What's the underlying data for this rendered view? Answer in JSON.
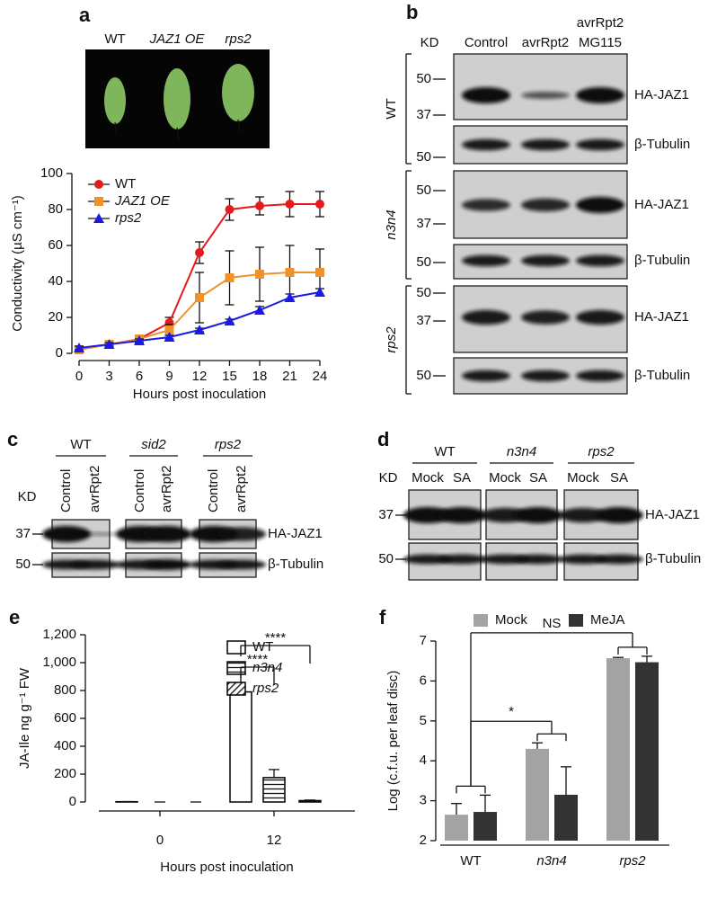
{
  "leaf_photo": {
    "labels": [
      "WT",
      "JAZ1 OE",
      "rps2"
    ]
  },
  "chart_data": [
    {
      "type": "line",
      "panel_label": "a",
      "ylabel": "Conductivity (µS cm⁻¹)",
      "xlabel": "Hours post inoculation",
      "x": [
        0,
        3,
        6,
        9,
        12,
        15,
        18,
        21,
        24
      ],
      "xlim": [
        0,
        24
      ],
      "xticks": [
        0,
        3,
        6,
        9,
        12,
        15,
        18,
        21,
        24
      ],
      "ylim": [
        0,
        100
      ],
      "yticks": [
        0,
        20,
        40,
        60,
        80,
        100
      ],
      "legend": "upper left",
      "series": [
        {
          "name": "WT",
          "color": "#e41a1c",
          "marker": "circle",
          "values": [
            2,
            5,
            8,
            17,
            56,
            80,
            82,
            83,
            83
          ],
          "errors": [
            1,
            1,
            2,
            3,
            6,
            6,
            5,
            7,
            7
          ]
        },
        {
          "name": "JAZ1 OE",
          "color": "#f0922b",
          "marker": "square",
          "values": [
            2,
            5,
            8,
            13,
            31,
            42,
            44,
            45,
            45
          ],
          "errors": [
            1,
            1,
            2,
            3,
            14,
            15,
            15,
            15,
            13
          ]
        },
        {
          "name": "rps2",
          "color": "#1a1ae6",
          "marker": "triangle",
          "values": [
            3,
            5,
            7,
            9,
            13,
            18,
            24,
            31,
            34
          ],
          "errors": [
            1,
            1,
            1,
            1,
            1,
            1,
            2,
            2,
            2
          ]
        }
      ]
    },
    {
      "type": "bar",
      "panel_label": "e",
      "ylabel": "JA-Ile ng g⁻¹ FW",
      "xlabel": "Hours post inoculation",
      "categories": [
        "0",
        "12"
      ],
      "ylim": [
        0,
        1200
      ],
      "yticks": [
        0,
        200,
        400,
        600,
        800,
        {
          "value": 1000,
          "label": "1,000"
        },
        {
          "value": 1200,
          "label": "1,200"
        }
      ],
      "legend": "upper center",
      "annotations": [
        "****",
        "****"
      ],
      "series": [
        {
          "name": "WT",
          "color": "#000000",
          "hatch": "none",
          "values": [
            2,
            790
          ],
          "errors": [
            1,
            130
          ]
        },
        {
          "name": "n3n4",
          "color": "#000000",
          "hatch": "horizontal",
          "values": [
            0,
            175
          ],
          "errors": [
            0,
            58
          ]
        },
        {
          "name": "rps2",
          "color": "#000000",
          "hatch": "diagonal",
          "values": [
            0,
            10
          ],
          "errors": [
            0,
            4
          ]
        }
      ]
    },
    {
      "type": "bar",
      "panel_label": "f",
      "ylabel": "Log (c.f.u. per leaf disc)",
      "categories": [
        "WT",
        "n3n4",
        "rps2"
      ],
      "ylim": [
        2,
        7
      ],
      "yticks": [
        2,
        3,
        4,
        5,
        6,
        7
      ],
      "legend": "top",
      "annotations": [
        "*",
        "NS"
      ],
      "series": [
        {
          "name": "Mock",
          "color": "#a3a3a3",
          "values": [
            2.65,
            4.3,
            6.57
          ],
          "errors": [
            0.28,
            0.15,
            0.02
          ]
        },
        {
          "name": "MeJA",
          "color": "#333333",
          "values": [
            2.72,
            3.15,
            6.47
          ],
          "errors": [
            0.42,
            0.7,
            0.15
          ]
        }
      ]
    }
  ],
  "blot_b": {
    "panel_label": "b",
    "kd_label": "KD",
    "lanes": [
      [
        "Control"
      ],
      [
        "avrRpt2"
      ],
      [
        "avrRpt2",
        "MG115"
      ]
    ],
    "groups": [
      {
        "genotype": "WT",
        "blots": [
          {
            "antibody": "HA-JAZ1",
            "markers": [
              50,
              37
            ]
          },
          {
            "antibody": "β-Tubulin",
            "markers": [
              50
            ]
          }
        ]
      },
      {
        "genotype": "n3n4",
        "blots": [
          {
            "antibody": "HA-JAZ1",
            "markers": [
              50,
              37
            ]
          },
          {
            "antibody": "β-Tubulin",
            "markers": [
              50
            ]
          }
        ]
      },
      {
        "genotype": "rps2",
        "blots": [
          {
            "antibody": "HA-JAZ1",
            "markers": [
              50,
              37
            ]
          },
          {
            "antibody": "β-Tubulin",
            "markers": [
              50
            ]
          }
        ]
      }
    ]
  },
  "blot_c": {
    "panel_label": "c",
    "kd_label": "KD",
    "antibodies": [
      "HA-JAZ1",
      "β-Tubulin"
    ],
    "markers": [
      37,
      50
    ],
    "groups": [
      {
        "genotype": "WT",
        "lanes": [
          "Control",
          "avrRpt2"
        ]
      },
      {
        "genotype": "sid2",
        "lanes": [
          "Control",
          "avrRpt2"
        ]
      },
      {
        "genotype": "rps2",
        "lanes": [
          "Control",
          "avrRpt2"
        ]
      }
    ]
  },
  "blot_d": {
    "panel_label": "d",
    "kd_label": "KD",
    "antibodies": [
      "HA-JAZ1",
      "β-Tubulin"
    ],
    "markers": [
      37,
      50
    ],
    "groups": [
      {
        "genotype": "WT",
        "lanes": [
          "Mock",
          "SA"
        ]
      },
      {
        "genotype": "n3n4",
        "lanes": [
          "Mock",
          "SA"
        ]
      },
      {
        "genotype": "rps2",
        "lanes": [
          "Mock",
          "SA"
        ]
      }
    ]
  }
}
